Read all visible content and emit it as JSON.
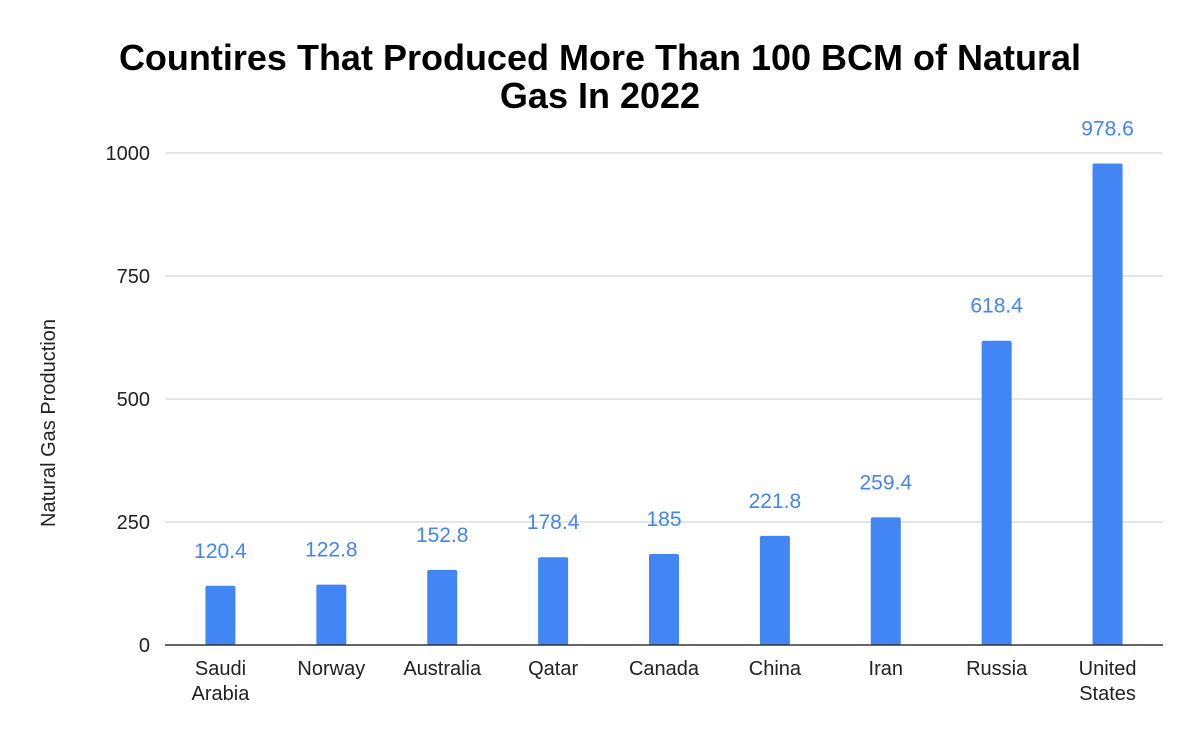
{
  "chart_data": {
    "type": "bar",
    "title_lines": [
      "Countires That Produced More Than 100 BCM of Natural",
      "Gas In 2022"
    ],
    "xlabel": "",
    "ylabel": "Natural Gas Production",
    "categories": [
      [
        "Saudi",
        "Arabia"
      ],
      [
        "Norway"
      ],
      [
        "Australia"
      ],
      [
        "Qatar"
      ],
      [
        "Canada"
      ],
      [
        "China"
      ],
      [
        "Iran"
      ],
      [
        "Russia"
      ],
      [
        "United",
        "States"
      ]
    ],
    "values": [
      120.4,
      122.8,
      152.8,
      178.4,
      185,
      221.8,
      259.4,
      618.4,
      978.6
    ],
    "data_labels": [
      "120.4",
      "122.8",
      "152.8",
      "178.4",
      "185",
      "221.8",
      "259.4",
      "618.4",
      "978.6"
    ],
    "ylim": [
      0,
      1000
    ],
    "yticks": [
      0,
      250,
      500,
      750,
      1000
    ],
    "grid": true,
    "legend": "none",
    "bar_color": "#4285f4",
    "label_color": "#4285f4"
  }
}
